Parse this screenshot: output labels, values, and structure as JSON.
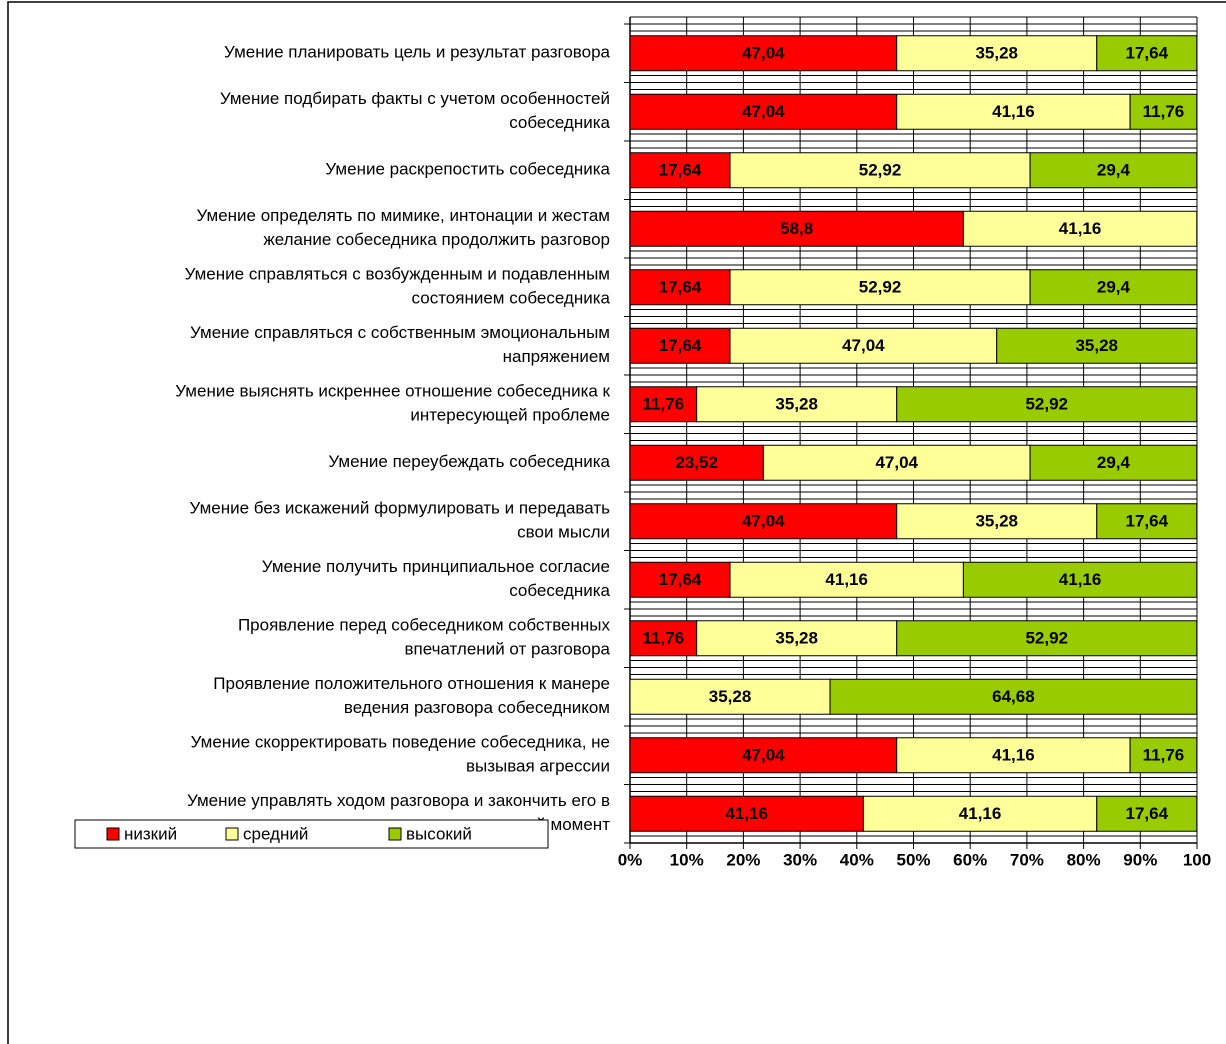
{
  "chart_data": {
    "type": "stacked-bar-horizontal",
    "categories": [
      "Умение планировать цель и результат разговора",
      "Умение подбирать факты с учетом особенностей\nсобеседника",
      "Умение раскрепостить собеседника",
      "Умение определять по мимике, интонации и жестам\nжелание собеседника продолжить разговор",
      "Умение справляться с возбужденным и подавленным\nсостоянием собеседника",
      "Умение справляться с собственным эмоциональным\nнапряжением",
      "Умение выяснять искреннее отношение собеседника к\nинтересующей проблеме",
      "Умение переубеждать собеседника",
      "Умение без искажений формулировать и передавать\nсвои мысли",
      "Умение получить принципиальное согласие\nсобеседника",
      "Проявление перед собеседником собственных\nвпечатлений от разговора",
      "Проявление положительного отношения к манере\nведения разговора собеседником",
      "Умение скорректировать поведение собеседника, не\nвызывая агрессии",
      "Умение управлять ходом разговора и закончить его в\nнужный момент"
    ],
    "series": [
      {
        "name": "низкий",
        "color": "#ff0000",
        "values": [
          47.04,
          47.04,
          17.64,
          58.8,
          17.64,
          17.64,
          11.76,
          23.52,
          47.04,
          17.64,
          11.76,
          null,
          47.04,
          41.16
        ],
        "value_labels": [
          "47,04",
          "47,04",
          "17,64",
          "58,8",
          "17,64",
          "17,64",
          "11,76",
          "23,52",
          "47,04",
          "17,64",
          "11,76",
          null,
          "47,04",
          "41,16"
        ]
      },
      {
        "name": "средний",
        "color": "#ffff99",
        "values": [
          35.28,
          41.16,
          52.92,
          41.16,
          52.92,
          47.04,
          35.28,
          47.04,
          35.28,
          41.16,
          35.28,
          35.28,
          41.16,
          41.16
        ],
        "value_labels": [
          "35,28",
          "41,16",
          "52,92",
          "41,16",
          "52,92",
          "47,04",
          "35,28",
          "47,04",
          "35,28",
          "41,16",
          "35,28",
          "35,28",
          "41,16",
          "41,16"
        ]
      },
      {
        "name": "высокий",
        "color": "#99cc00",
        "values": [
          17.64,
          11.76,
          29.4,
          null,
          29.4,
          35.28,
          52.92,
          29.4,
          17.64,
          41.16,
          52.92,
          64.68,
          11.76,
          17.64
        ],
        "value_labels": [
          "17,64",
          "11,76",
          "29,4",
          null,
          "29,4",
          "35,28",
          "52,92",
          "29,4",
          "17,64",
          "41,16",
          "52,92",
          "64,68",
          "11,76",
          "17,64"
        ]
      }
    ],
    "xlim": [
      0,
      100
    ],
    "xticks": [
      {
        "value": 0,
        "label": "0%"
      },
      {
        "value": 10,
        "label": "10%"
      },
      {
        "value": 20,
        "label": "20%"
      },
      {
        "value": 30,
        "label": "30%"
      },
      {
        "value": 40,
        "label": "40%"
      },
      {
        "value": 50,
        "label": "50%"
      },
      {
        "value": 60,
        "label": "60%"
      },
      {
        "value": 70,
        "label": "70%"
      },
      {
        "value": 80,
        "label": "80%"
      },
      {
        "value": 90,
        "label": "90%"
      },
      {
        "value": 100,
        "label": "100"
      }
    ],
    "grid": true,
    "legend": "bottom-left"
  }
}
